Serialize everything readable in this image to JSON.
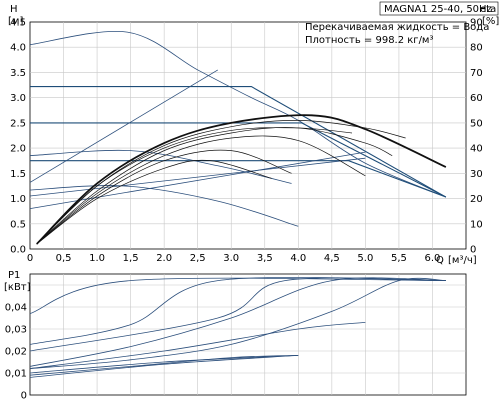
{
  "chart_data": [
    {
      "type": "line",
      "id": "qh",
      "title": "MAGNA1 25-40, 50Hz",
      "subtitle_lines": [
        "Перекачиваемая жидкость = Вода",
        "Плотность = 998.2 кг/м³"
      ],
      "xlabel": "Q",
      "xunit": "[м³/ч]",
      "ylabel_left": "H",
      "yunit_left": "[м]",
      "ylabel_right": "eta",
      "yunit_right": "[%]",
      "xlim": [
        0,
        6.5
      ],
      "ylim_left": [
        0,
        4.5
      ],
      "ylim_right": [
        0,
        90
      ],
      "x_ticks": [
        "0",
        "0,5",
        "1.0",
        "1,5",
        "2.0",
        "2,5",
        "3.0",
        "3,5",
        "4.0",
        "4,5",
        "5.0",
        "5,5",
        "6.0"
      ],
      "y_left_ticks": [
        "0.0",
        "0.5",
        "1.0",
        "1.5",
        "2.0",
        "2.5",
        "3.0",
        "3.5",
        "4.0",
        "4.5"
      ],
      "y_right_ticks": [
        "0",
        "10",
        "20",
        "30",
        "40",
        "50",
        "60",
        "70",
        "80",
        "90"
      ],
      "grid": true,
      "series": [
        {
          "kind": "head",
          "x": [
            0,
            1.45,
            2.5,
            3.3,
            4.0,
            5.0,
            6.2
          ],
          "y": [
            4.05,
            4.3,
            3.55,
            3.0,
            2.55,
            1.7,
            1.03
          ]
        },
        {
          "kind": "head",
          "x": [
            0,
            3.3,
            6.2
          ],
          "y": [
            3.22,
            3.22,
            1.03
          ]
        },
        {
          "kind": "head",
          "x": [
            0,
            4.05,
            6.2
          ],
          "y": [
            2.5,
            2.5,
            1.03
          ]
        },
        {
          "kind": "head",
          "x": [
            0,
            4.75,
            6.2
          ],
          "y": [
            1.75,
            1.75,
            1.03
          ]
        },
        {
          "kind": "head",
          "x": [
            0,
            1.5,
            2.8,
            3.9
          ],
          "y": [
            1.85,
            1.95,
            1.65,
            1.3
          ]
        },
        {
          "kind": "head",
          "x": [
            0,
            1.4,
            2.8,
            4.0
          ],
          "y": [
            1.17,
            1.25,
            0.95,
            0.45
          ]
        },
        {
          "kind": "head",
          "x": [
            0,
            2.8
          ],
          "y": [
            1.32,
            3.55
          ]
        },
        {
          "kind": "head",
          "x": [
            0,
            5.0
          ],
          "y": [
            1.05,
            1.8
          ]
        },
        {
          "kind": "head",
          "x": [
            0,
            5.0
          ],
          "y": [
            0.8,
            1.92
          ]
        },
        {
          "kind": "eta",
          "x": [
            0.1,
            1.0,
            2.0,
            3.0,
            4.2,
            5.0,
            6.2
          ],
          "y": [
            2,
            26,
            42,
            50,
            53,
            47.5,
            32.5
          ]
        },
        {
          "kind": "eta",
          "x": [
            0.1,
            1.0,
            2.0,
            3.0,
            4.0,
            5.0,
            5.6
          ],
          "y": [
            2,
            25,
            41,
            48.5,
            51,
            48,
            44
          ]
        },
        {
          "kind": "eta",
          "x": [
            0.1,
            1.0,
            2.0,
            3.0,
            4.0,
            4.8
          ],
          "y": [
            2,
            25,
            40,
            47,
            48,
            46
          ]
        },
        {
          "kind": "eta",
          "x": [
            0.1,
            1.0,
            2.0,
            3.0,
            4.0,
            5.0,
            5.4
          ],
          "y": [
            2,
            23,
            39,
            46,
            48,
            42,
            37
          ]
        },
        {
          "kind": "eta",
          "x": [
            0.1,
            1.0,
            2.0,
            3.0,
            4.0,
            5.0
          ],
          "y": [
            2,
            22,
            37,
            44,
            43,
            29
          ]
        },
        {
          "kind": "eta",
          "x": [
            0.1,
            1.0,
            2.0,
            3.0,
            3.9
          ],
          "y": [
            2,
            21,
            35,
            39,
            30
          ]
        },
        {
          "kind": "eta",
          "x": [
            0.1,
            1.0,
            2.0,
            2.7,
            3.6
          ],
          "y": [
            2,
            20,
            32,
            35,
            28
          ]
        }
      ]
    },
    {
      "type": "line",
      "id": "p1",
      "ylabel_left": "P1",
      "yunit_left": "[кВт]",
      "xlim": [
        0,
        6.5
      ],
      "ylim_left": [
        0,
        0.055
      ],
      "y_left_ticks": [
        "0",
        "0,01",
        "0,02",
        "0,03",
        "0,04"
      ],
      "grid": true,
      "series": [
        {
          "x": [
            0,
            1.5,
            6.2
          ],
          "y": [
            0.037,
            0.052,
            0.052
          ]
        },
        {
          "x": [
            0,
            1.5,
            2.8,
            6.2
          ],
          "y": [
            0.023,
            0.032,
            0.052,
            0.052
          ]
        },
        {
          "x": [
            0,
            2.8,
            3.8,
            6.2
          ],
          "y": [
            0.02,
            0.035,
            0.052,
            0.052
          ]
        },
        {
          "x": [
            0,
            1.5,
            3.0,
            4.5,
            6.2
          ],
          "y": [
            0.013,
            0.022,
            0.035,
            0.052,
            0.052
          ]
        },
        {
          "x": [
            0,
            1.5,
            3.0,
            4.5,
            5.5,
            6.2
          ],
          "y": [
            0.012,
            0.016,
            0.023,
            0.038,
            0.052,
            0.052
          ]
        },
        {
          "x": [
            0,
            2.0,
            4.0,
            5.0
          ],
          "y": [
            0.012,
            0.02,
            0.03,
            0.033
          ]
        },
        {
          "x": [
            0,
            2.0,
            4.0
          ],
          "y": [
            0.01,
            0.015,
            0.018
          ]
        },
        {
          "x": [
            0,
            1.5,
            3.0,
            4.0
          ],
          "y": [
            0.009,
            0.013,
            0.017,
            0.018
          ]
        },
        {
          "x": [
            0,
            2.0,
            4.0
          ],
          "y": [
            0.008,
            0.014,
            0.018
          ]
        }
      ]
    }
  ]
}
